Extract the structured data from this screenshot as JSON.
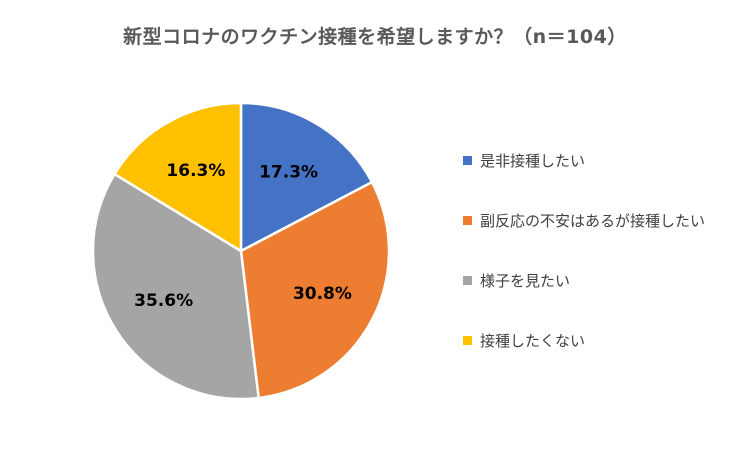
{
  "chart_data": {
    "type": "pie",
    "title": "新型コロナのワクチン接種を希望しますか？（n＝104）",
    "categories": [
      "是非接種したい",
      "副反応の不安はあるが接種したい",
      "様子を見たい",
      "接種したくない"
    ],
    "values": [
      17.3,
      30.8,
      35.6,
      16.3
    ],
    "value_labels": [
      "17.3%",
      "30.8%",
      "35.6%",
      "16.3%"
    ],
    "colors": [
      "#4472C4",
      "#ED7D31",
      "#A5A5A5",
      "#FFC000"
    ],
    "start_angle_deg": 0,
    "direction": "clockwise",
    "legend_position": "right"
  }
}
